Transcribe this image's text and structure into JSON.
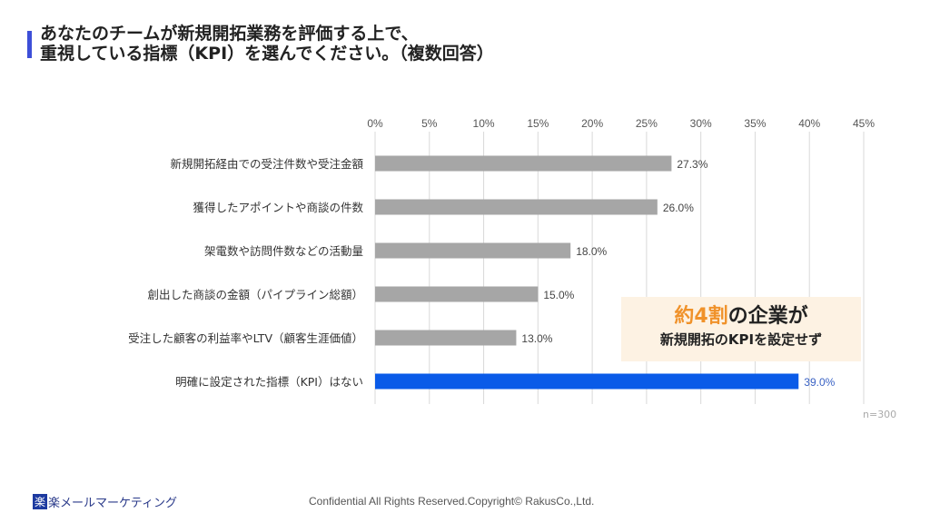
{
  "title": {
    "line1": "あなたのチームが新規開拓業務を評価する上で、",
    "line2": "重視している指標（KPI）を選んでください。（複数回答）"
  },
  "chart_data": {
    "type": "bar",
    "orientation": "horizontal",
    "categories": [
      "新規開拓経由での受注件数や受注金額",
      "獲得したアポイントや商談の件数",
      "架電数や訪問件数などの活動量",
      "創出した商談の金額（パイプライン総額）",
      "受注した顧客の利益率やLTV（顧客生涯価値）",
      "明確に設定された指標（KPI）はない"
    ],
    "values": [
      27.3,
      26.0,
      18.0,
      15.0,
      13.0,
      39.0
    ],
    "data_labels": [
      "27.3%",
      "26.0%",
      "18.0%",
      "15.0%",
      "13.0%",
      "39.0%"
    ],
    "xlim": [
      0,
      45
    ],
    "xticks": [
      0,
      5,
      10,
      15,
      20,
      25,
      30,
      35,
      40,
      45
    ],
    "xtick_labels": [
      "0%",
      "5%",
      "10%",
      "15%",
      "20%",
      "25%",
      "30%",
      "35%",
      "40%",
      "45%"
    ],
    "axis_position": "top",
    "grid": true,
    "colors": {
      "default": "#a6a6a6",
      "highlight": "#0a5be8",
      "highlight_label": "#3a62c4"
    },
    "highlight_index": 5,
    "note": "n=300"
  },
  "callout": {
    "highlight": "約4割",
    "line1_rest": "の企業が",
    "line2": "新規開拓のKPIを設定せず",
    "highlight_color": "#f0922a",
    "background": "#fdf2e3"
  },
  "footer": {
    "logo_text": "楽楽メールマーケティング",
    "logo_mark": "楽",
    "logo_rest": "楽メールマーケティング",
    "copyright": "Confidential All Rights Reserved.Copyright© RakusCo.,Ltd."
  }
}
